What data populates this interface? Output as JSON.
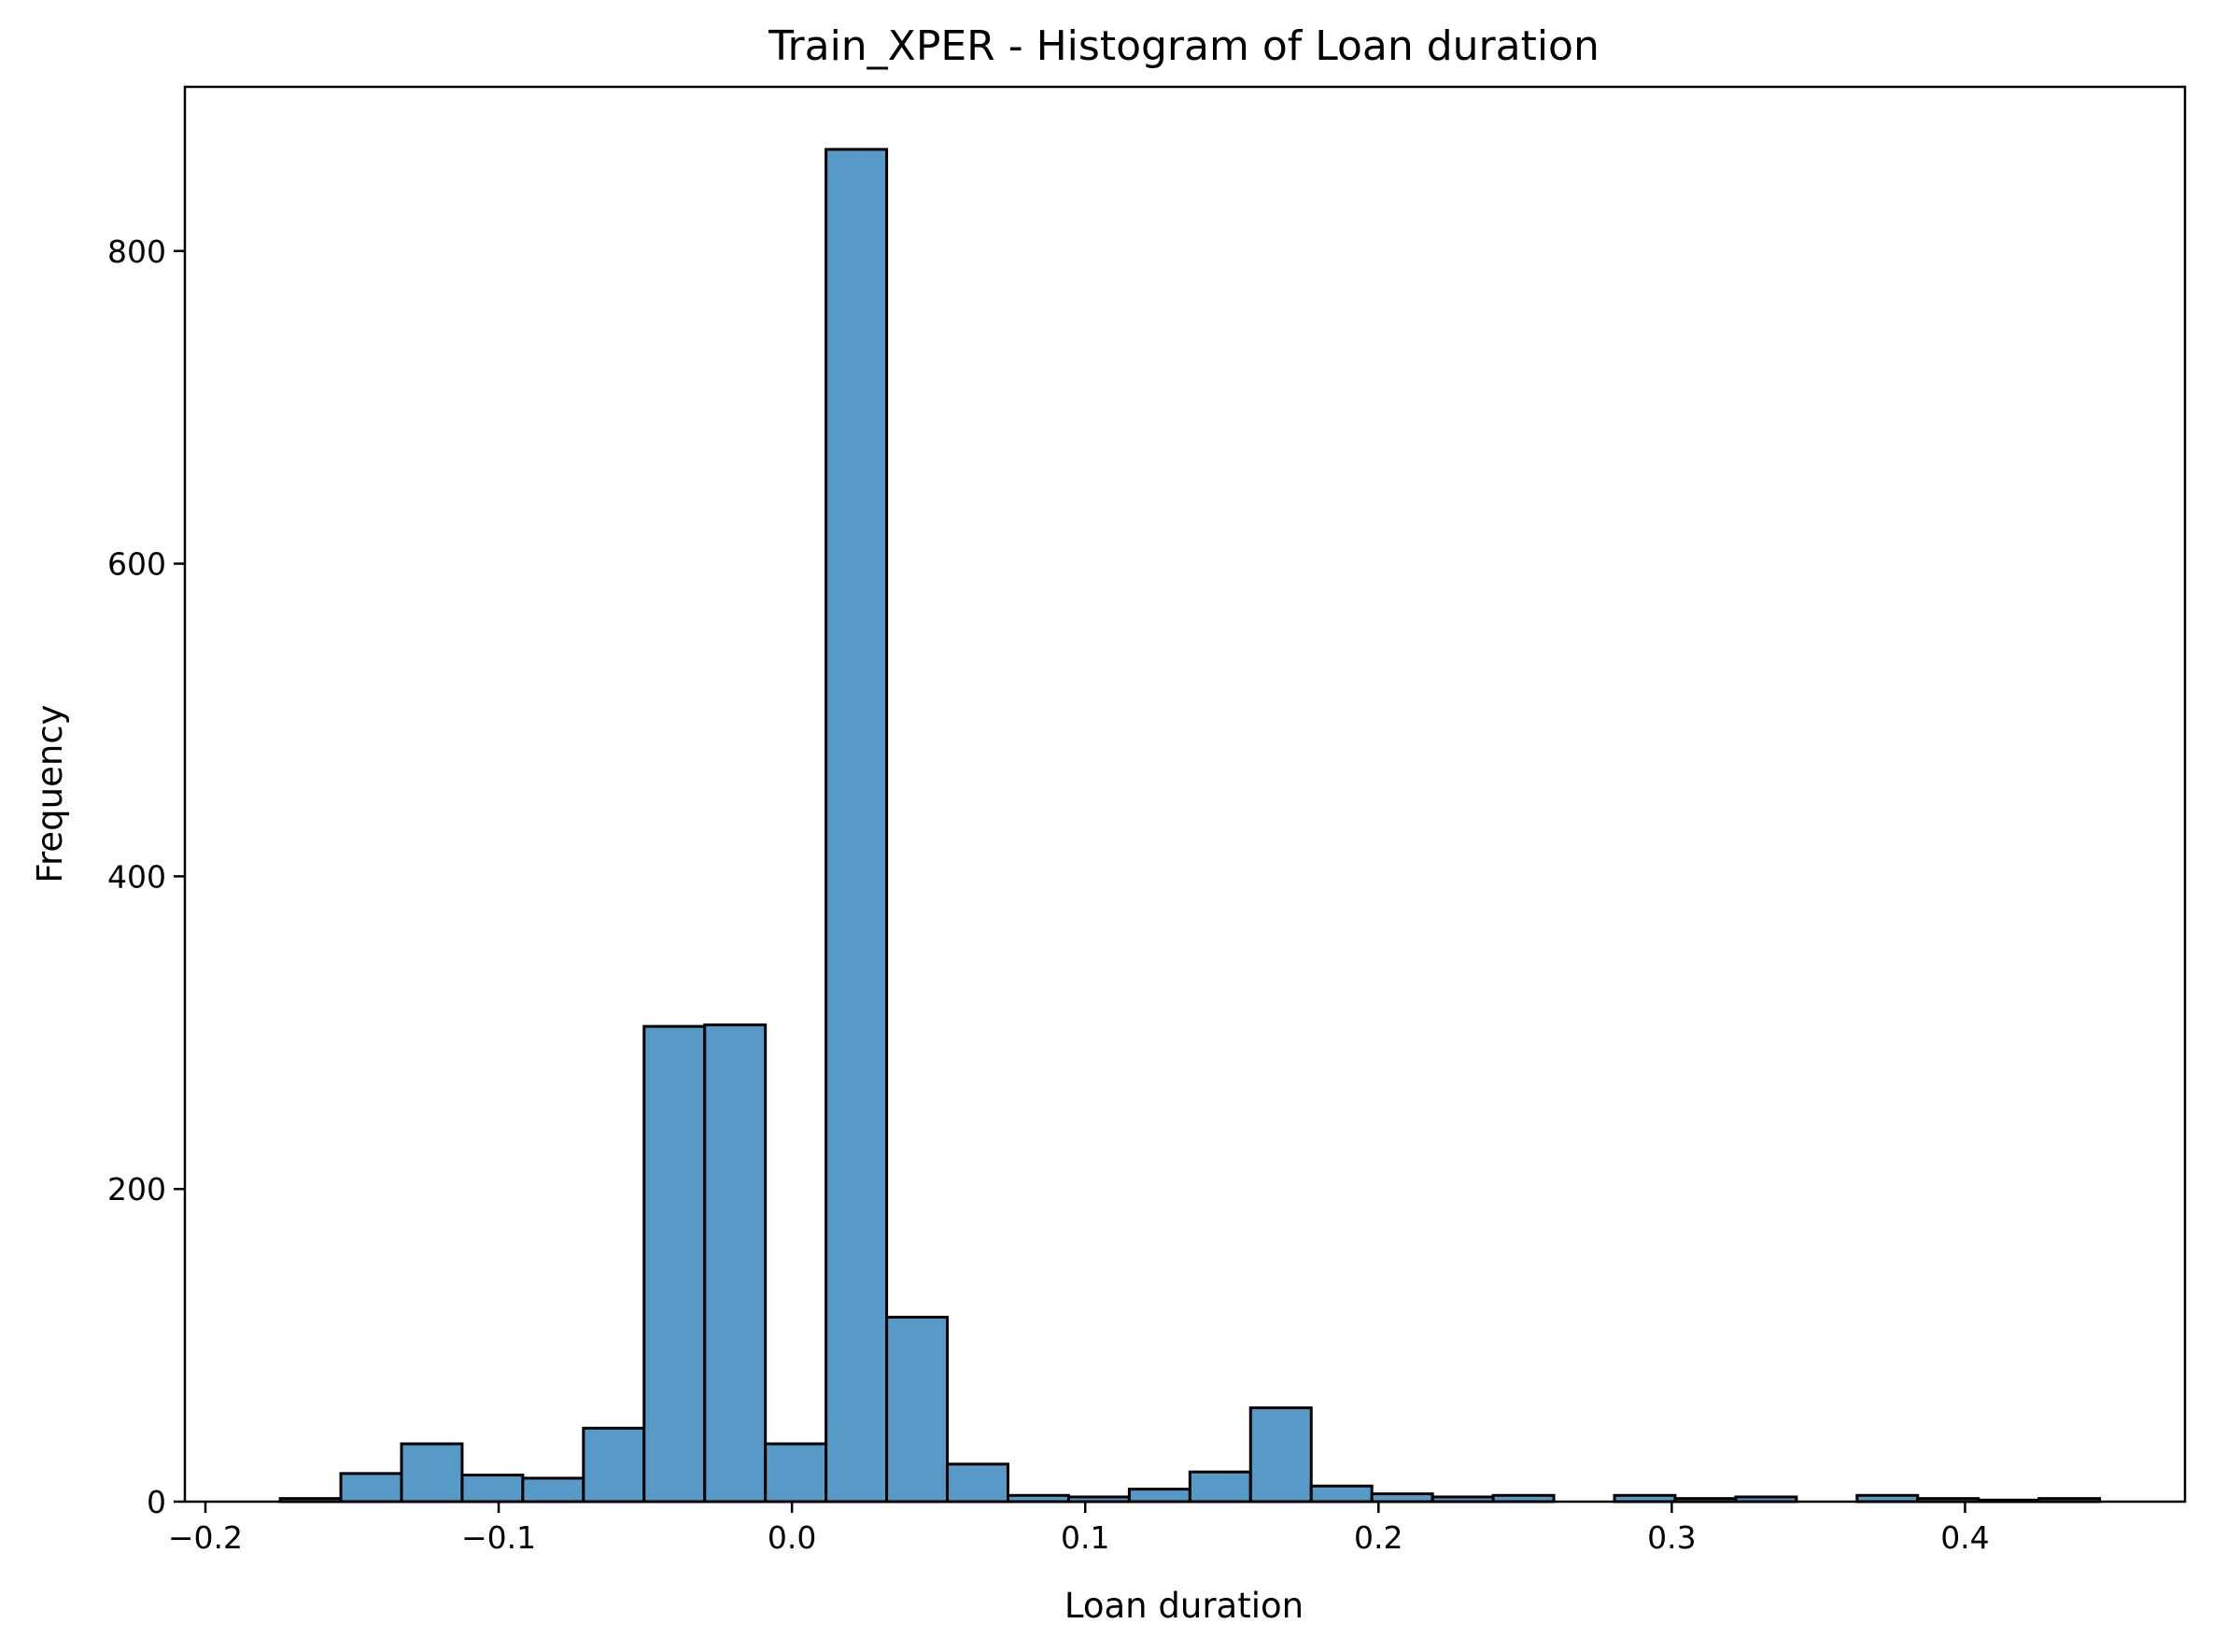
{
  "chart_data": {
    "type": "bar",
    "title": "Train_XPER - Histogram of Loan duration",
    "xlabel": "Loan duration",
    "ylabel": "Frequency",
    "xlim": [
      -0.207,
      0.475
    ],
    "ylim": [
      0,
      905
    ],
    "grid": false,
    "bar_color": "#5799c7",
    "edge_color": "#000000",
    "x_ticks": [
      {
        "value": -0.2,
        "label": "−0.2"
      },
      {
        "value": -0.1,
        "label": "−0.1"
      },
      {
        "value": 0.0,
        "label": "0.0"
      },
      {
        "value": 0.1,
        "label": "0.1"
      },
      {
        "value": 0.2,
        "label": "0.2"
      },
      {
        "value": 0.3,
        "label": "0.3"
      },
      {
        "value": 0.4,
        "label": "0.4"
      }
    ],
    "y_ticks": [
      {
        "value": 0,
        "label": "0"
      },
      {
        "value": 200,
        "label": "200"
      },
      {
        "value": 400,
        "label": "400"
      },
      {
        "value": 600,
        "label": "600"
      },
      {
        "value": 800,
        "label": "800"
      }
    ],
    "bins": {
      "start": -0.1745,
      "width": 0.02068,
      "counts": [
        2,
        18,
        37,
        17,
        15,
        47,
        304,
        305,
        37,
        865,
        118,
        24,
        4,
        3,
        8,
        19,
        60,
        10,
        5,
        3,
        4,
        0,
        4,
        2,
        3,
        0,
        4,
        2,
        1,
        2
      ]
    }
  }
}
